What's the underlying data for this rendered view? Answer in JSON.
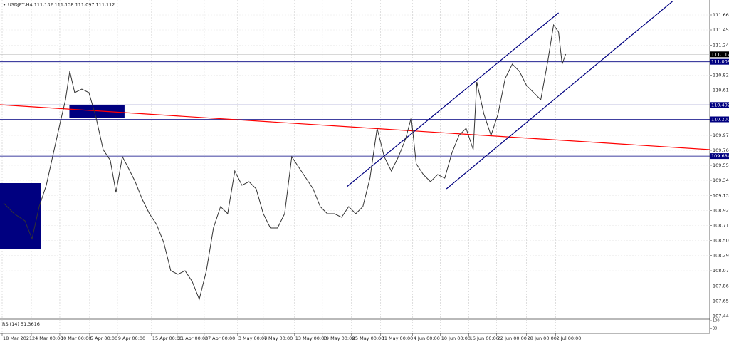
{
  "chart_data": {
    "type": "line",
    "title": "USDJPY,H4 111.132 111.138 111.097 111.112",
    "x": [
      4,
      16,
      28,
      36,
      44,
      52,
      60,
      68,
      73.6,
      78.4,
      84,
      92,
      100,
      108,
      116,
      124,
      130.4,
      137.6,
      144,
      152,
      160,
      168,
      176,
      184,
      192,
      200,
      208,
      216,
      224,
      232,
      240,
      248,
      256,
      264,
      272,
      280,
      288,
      296,
      304,
      312,
      320,
      328,
      336,
      344,
      352,
      360,
      368,
      376,
      384,
      392,
      400,
      408,
      416,
      424,
      432,
      440,
      448,
      456,
      462.4,
      468,
      476,
      484,
      492,
      500,
      508,
      516,
      524,
      532,
      536,
      544,
      552,
      560,
      568,
      576,
      584,
      592,
      600,
      608,
      616,
      622.4,
      628,
      632,
      636
    ],
    "values": [
      109.025,
      108.875,
      108.775,
      108.525,
      108.975,
      109.275,
      109.725,
      110.175,
      110.475,
      110.875,
      110.575,
      110.625,
      110.575,
      110.225,
      109.775,
      109.625,
      109.175,
      109.675,
      109.525,
      109.325,
      109.075,
      108.875,
      108.725,
      108.475,
      108.075,
      108.025,
      108.075,
      107.925,
      107.675,
      108.075,
      108.675,
      108.975,
      108.875,
      109.475,
      109.275,
      109.325,
      109.225,
      108.875,
      108.675,
      108.675,
      108.875,
      109.675,
      109.525,
      109.375,
      109.225,
      108.975,
      108.875,
      108.875,
      108.825,
      108.975,
      108.875,
      108.975,
      109.375,
      110.075,
      109.675,
      109.475,
      109.675,
      109.925,
      110.225,
      109.575,
      109.425,
      109.325,
      109.425,
      109.375,
      109.725,
      109.975,
      110.075,
      109.775,
      110.725,
      110.275,
      109.975,
      110.275,
      110.775,
      110.975,
      110.875,
      110.675,
      110.575,
      110.475,
      111.025,
      111.525,
      111.425,
      110.975,
      111.115
    ],
    "color": "#333333",
    "xlim": [
      0,
      798
    ],
    "ylim": [
      107.405,
      111.875
    ],
    "yticks": [
      111.665,
      111.455,
      {
        "value": 111.24,
        "label": "111.240"
      },
      {
        "value": 110.82,
        "label": "110.820"
      },
      {
        "value": 110.61,
        "label": "110.610"
      },
      109.975,
      109.765,
      109.555,
      109.345,
      {
        "value": 109.13,
        "label": "109.130"
      },
      {
        "value": 108.92,
        "label": "108.920"
      },
      {
        "value": 108.71,
        "label": "108.710"
      },
      {
        "value": 108.5,
        "label": "108.500"
      },
      {
        "value": 108.29,
        "label": "108.290"
      },
      108.075,
      {
        "value": 107.86,
        "label": "107.860"
      },
      {
        "value": 107.65,
        "label": "107.650"
      },
      {
        "value": 107.44,
        "label": "107.440"
      }
    ],
    "xticks": [
      {
        "value": 2.4,
        "label": "18 Mar 2021"
      },
      {
        "value": 35.2,
        "label": "24 Mar 00:00"
      },
      {
        "value": 67.2,
        "label": "30 Mar 00:00"
      },
      {
        "value": 100.8,
        "label": "5 Apr 00:00"
      },
      {
        "value": 132,
        "label": "9 Apr 00:00"
      },
      {
        "value": 170.4,
        "label": "15 Apr 00:00"
      },
      {
        "value": 199.2,
        "label": "21 Apr 00:00"
      },
      {
        "value": 229.6,
        "label": "27 Apr 00:00"
      },
      {
        "value": 267.2,
        "label": "3 May 00:00"
      },
      {
        "value": 296,
        "label": "7 May 00:00"
      },
      {
        "value": 331.2,
        "label": "13 May 00:00"
      },
      {
        "value": 362.4,
        "label": "19 May 00:00"
      },
      {
        "value": 395.2,
        "label": "25 May 00:00"
      },
      {
        "value": 428,
        "label": "31 May 00:00"
      },
      {
        "value": 464,
        "label": "4 Jun 00:00"
      },
      {
        "value": 495.2,
        "label": "10 Jun 00:00"
      },
      {
        "value": 527.2,
        "label": "16 Jun 00:00"
      },
      {
        "value": 558.4,
        "label": "22 Jun 00:00"
      },
      {
        "value": 592,
        "label": "28 Jun 00:00"
      },
      {
        "value": 624.8,
        "label": "2 Jul 00:00"
      }
    ],
    "grid": true,
    "levels": [
      {
        "value": 111.008,
        "color": "#000080"
      },
      {
        "value": 110.402,
        "color": "#000080"
      },
      {
        "value": {
          "value": 110.2,
          "label": "110.200"
        },
        "color": "#000080"
      },
      {
        "value": 109.684,
        "color": "#000080"
      }
    ],
    "current_price": 111.112,
    "trendlines": [
      {
        "x": [
          0,
          798
        ],
        "values": [
          110.405,
          109.775
        ],
        "color": "#ff0000"
      },
      {
        "x": [
          390,
          628
        ],
        "values": [
          109.255,
          111.695
        ],
        "color": "#000080"
      },
      {
        "x": [
          502,
          756
        ],
        "values": [
          109.225,
          111.855
        ],
        "color": "#000080"
      }
    ],
    "boxes": [
      {
        "x": [
          0,
          46
        ],
        "values": [
          109.305,
          108.375
        ],
        "color": "#000080"
      },
      {
        "x": [
          78,
          140
        ],
        "values": [
          110.405,
          110.215
        ],
        "color": "#000080"
      }
    ],
    "indicator": {
      "label": "RSI(14) 51.3616",
      "ylim": [
        0,
        100
      ],
      "yticks": [
        100,
        30
      ]
    }
  }
}
